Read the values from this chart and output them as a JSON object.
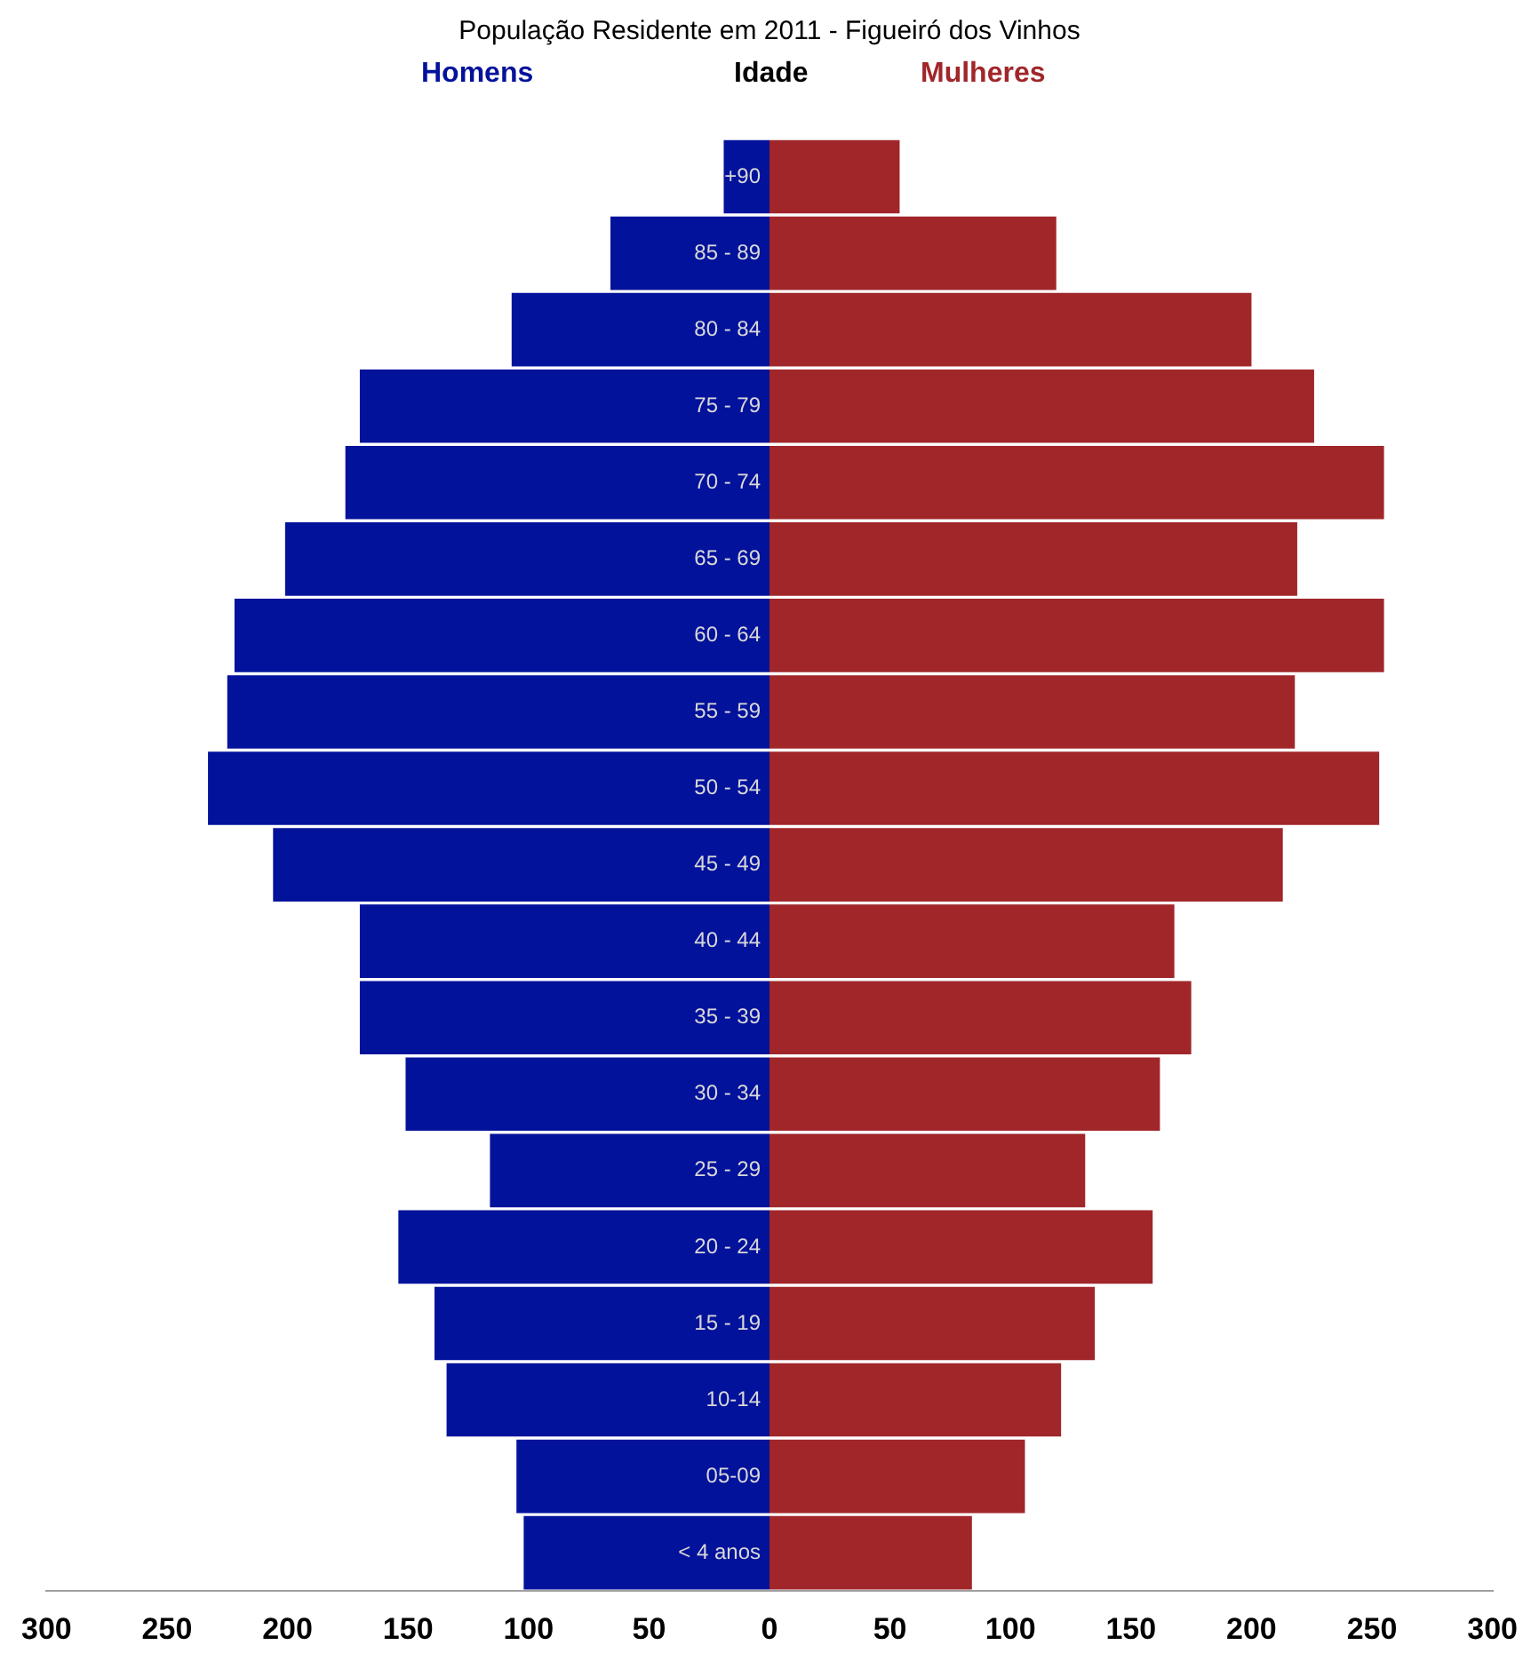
{
  "chart_data": {
    "type": "bar",
    "orientation": "horizontal",
    "stacked": true,
    "title": "População Residente em 2011 - Figueiró dos Vinhos",
    "ylabel": "Idade",
    "categories": [
      "+90",
      "85 - 89",
      "80 - 84",
      "75 - 79",
      "70 - 74",
      "65 - 69",
      "60 - 64",
      "55 - 59",
      "50 - 54",
      "45 - 49",
      "40 - 44",
      "35 - 39",
      "30 - 34",
      "25 - 29",
      "20 - 24",
      "15 - 19",
      "10-14",
      "05-09",
      "< 4 anos"
    ],
    "series": [
      {
        "name": "Homens",
        "color": "#03129b",
        "values": [
          -19,
          -66,
          -107,
          -170,
          -176,
          -201,
          -222,
          -225,
          -233,
          -206,
          -170,
          -170,
          -151,
          -116,
          -154,
          -139,
          -134,
          -105,
          -102
        ]
      },
      {
        "name": "Mulheres",
        "color": "#a0262a",
        "values": [
          54,
          119,
          200,
          226,
          255,
          219,
          255,
          218,
          253,
          213,
          168,
          175,
          162,
          131,
          159,
          135,
          121,
          106,
          84
        ]
      }
    ],
    "xlim": [
      -300,
      300
    ],
    "xticks": [
      {
        "value": -300,
        "label": "300"
      },
      {
        "value": -250,
        "label": "250"
      },
      {
        "value": -200,
        "label": "200"
      },
      {
        "value": -150,
        "label": "150"
      },
      {
        "value": -100,
        "label": "100"
      },
      {
        "value": -50,
        "label": "50"
      },
      {
        "value": 0,
        "label": "0"
      },
      {
        "value": 50,
        "label": "50"
      },
      {
        "value": 100,
        "label": "100"
      },
      {
        "value": 150,
        "label": "150"
      },
      {
        "value": 200,
        "label": "200"
      },
      {
        "value": 250,
        "label": "250"
      },
      {
        "value": 300,
        "label": "300"
      }
    ],
    "grid": false
  }
}
